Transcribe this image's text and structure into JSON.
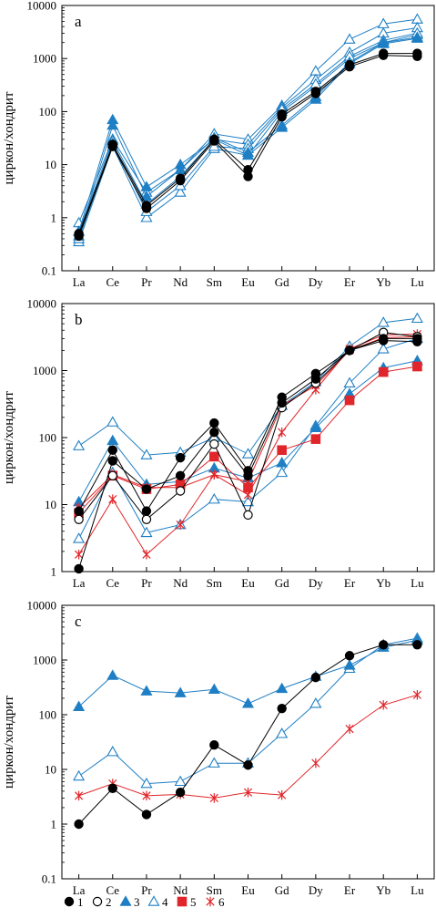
{
  "colors": {
    "black": "#000000",
    "blue": "#1f7fc4",
    "red": "#e0262a"
  },
  "y_axis_label": "циркон/хондрит",
  "legend": [
    {
      "label": "1",
      "marker": "filled-circle",
      "color": "#000000"
    },
    {
      "label": "2",
      "marker": "open-circle",
      "color": "#000000"
    },
    {
      "label": "3",
      "marker": "filled-triangle",
      "color": "#1f7fc4"
    },
    {
      "label": "4",
      "marker": "open-triangle",
      "color": "#1f7fc4"
    },
    {
      "label": "5",
      "marker": "filled-square",
      "color": "#e0262a"
    },
    {
      "label": "6",
      "marker": "star",
      "color": "#e0262a"
    }
  ],
  "chart_data": [
    {
      "type": "line",
      "panel_label": "a",
      "categories": [
        "La",
        "Ce",
        "Pr",
        "Nd",
        "Sm",
        "Eu",
        "Gd",
        "Dy",
        "Er",
        "Yb",
        "Lu"
      ],
      "yscale": "log",
      "ylim": [
        0.1,
        10000
      ],
      "yticks": [
        "0.1",
        "1",
        "10",
        "100",
        "1000",
        "10000"
      ],
      "ylabel": "циркон/хондрит",
      "series": [
        {
          "group": "1",
          "values": [
            0.45,
            22,
            1.5,
            5,
            28,
            6,
            80,
            220,
            700,
            1150,
            1100
          ]
        },
        {
          "group": "1",
          "values": [
            0.5,
            24,
            1.7,
            5.5,
            30,
            8,
            90,
            240,
            760,
            1250,
            1250
          ]
        },
        {
          "group": "3",
          "values": [
            0.55,
            70,
            3.8,
            10,
            30,
            15,
            50,
            170,
            800,
            1900,
            2400
          ]
        },
        {
          "group": "3",
          "values": [
            0.45,
            55,
            2.5,
            8,
            32,
            17,
            55,
            190,
            850,
            2000,
            2500
          ]
        },
        {
          "group": "4",
          "values": [
            0.8,
            30,
            3,
            8,
            38,
            30,
            130,
            580,
            2300,
            4500,
            5500
          ]
        },
        {
          "group": "4",
          "values": [
            0.55,
            28,
            1.8,
            6,
            30,
            24,
            120,
            400,
            1300,
            3000,
            3800
          ]
        },
        {
          "group": "4",
          "values": [
            0.35,
            22,
            1.0,
            3,
            20,
            15,
            100,
            300,
            1000,
            2000,
            2800
          ]
        },
        {
          "group": "4",
          "values": [
            0.4,
            25,
            1.3,
            4,
            22,
            20,
            110,
            330,
            1100,
            2200,
            3000
          ]
        }
      ]
    },
    {
      "type": "line",
      "panel_label": "b",
      "categories": [
        "La",
        "Ce",
        "Pr",
        "Nd",
        "Sm",
        "Eu",
        "Gd",
        "Dy",
        "Er",
        "Yb",
        "Lu"
      ],
      "yscale": "log",
      "ylim": [
        1,
        10000
      ],
      "yticks": [
        "1",
        "10",
        "100",
        "1000",
        "10000"
      ],
      "ylabel": "циркон/хондрит",
      "series": [
        {
          "group": "1",
          "values": [
            8,
            65,
            8,
            50,
            165,
            32,
            400,
            900,
            2000,
            3000,
            3000
          ]
        },
        {
          "group": "1",
          "values": [
            1.1,
            45,
            17,
            27,
            120,
            27,
            330,
            750,
            2000,
            2800,
            2700
          ]
        },
        {
          "group": "2",
          "values": [
            6,
            27,
            6,
            16,
            80,
            7,
            280,
            650,
            2000,
            3700,
            3200
          ]
        },
        {
          "group": "3",
          "values": [
            11,
            90,
            20,
            22,
            35,
            25,
            42,
            140,
            450,
            1100,
            1400
          ]
        },
        {
          "group": "4",
          "values": [
            75,
            170,
            55,
            60,
            100,
            57,
            300,
            680,
            2300,
            5200,
            6000
          ]
        },
        {
          "group": "4",
          "values": [
            3.1,
            30,
            3.8,
            5,
            12,
            11,
            30,
            150,
            650,
            2100,
            3000
          ]
        },
        {
          "group": "5",
          "values": [
            7.5,
            27,
            17,
            20,
            52,
            18,
            65,
            95,
            360,
            950,
            1150
          ]
        },
        {
          "group": "6",
          "values": [
            1.8,
            12,
            1.8,
            5,
            28,
            14,
            120,
            520,
            2100,
            3400,
            3500
          ]
        },
        {
          "group": "6",
          "values": [
            9,
            28,
            18,
            18,
            28,
            22,
            300,
            600,
            2000,
            3100,
            3200
          ]
        }
      ]
    },
    {
      "type": "line",
      "panel_label": "c",
      "categories": [
        "La",
        "Ce",
        "Pr",
        "Nd",
        "Sm",
        "Eu",
        "Gd",
        "Dy",
        "Er",
        "Yb",
        "Lu"
      ],
      "yscale": "log",
      "ylim": [
        0.1,
        10000
      ],
      "yticks": [
        "0.1",
        "1",
        "10",
        "100",
        "1000",
        "10000"
      ],
      "ylabel": "циркон/хондрит",
      "series": [
        {
          "group": "1",
          "values": [
            1,
            4.5,
            1.5,
            3.8,
            28,
            12,
            130,
            480,
            1200,
            1900,
            1900
          ]
        },
        {
          "group": "3",
          "values": [
            140,
            520,
            270,
            250,
            290,
            160,
            300,
            500,
            800,
            1700,
            2300
          ]
        },
        {
          "group": "4",
          "values": [
            7.5,
            21,
            5.5,
            6,
            13,
            13,
            45,
            160,
            700,
            1900,
            2500
          ]
        },
        {
          "group": "6",
          "values": [
            3.3,
            5.5,
            3.3,
            3.5,
            3,
            3.8,
            3.4,
            13,
            55,
            150,
            230
          ]
        }
      ]
    }
  ]
}
